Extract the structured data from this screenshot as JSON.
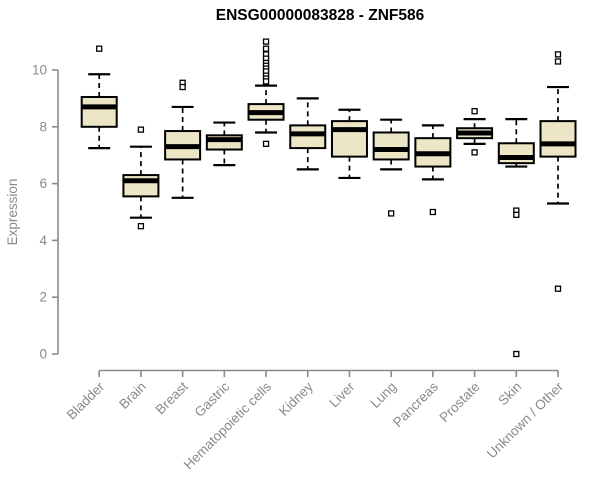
{
  "chart_data": {
    "type": "boxplot",
    "title": "ENSG00000083828 - ZNF586",
    "xlabel": "",
    "ylabel": "Expression",
    "ylim": [
      0,
      10
    ],
    "yticks": [
      0,
      2,
      4,
      6,
      8,
      10
    ],
    "grid": false,
    "legend": false,
    "categories": [
      "Bladder",
      "Brain",
      "Breast",
      "Gastric",
      "Hematopoietic cells",
      "Kidney",
      "Liver",
      "Lung",
      "Pancreas",
      "Prostate",
      "Skin",
      "Unknown / Other"
    ],
    "boxes": [
      {
        "category": "Bladder",
        "low": 7.25,
        "q1": 8.0,
        "median": 8.7,
        "q3": 9.05,
        "high": 9.85,
        "outliers": [
          10.75
        ]
      },
      {
        "category": "Brain",
        "low": 4.8,
        "q1": 5.55,
        "median": 6.1,
        "q3": 6.3,
        "high": 7.3,
        "outliers": [
          7.9,
          4.5
        ]
      },
      {
        "category": "Breast",
        "low": 5.5,
        "q1": 6.85,
        "median": 7.3,
        "q3": 7.85,
        "high": 8.7,
        "outliers": [
          9.55,
          9.4
        ]
      },
      {
        "category": "Gastric",
        "low": 6.65,
        "q1": 7.2,
        "median": 7.55,
        "q3": 7.7,
        "high": 8.15,
        "outliers": []
      },
      {
        "category": "Hematopoietic cells",
        "low": 7.8,
        "q1": 8.25,
        "median": 8.5,
        "q3": 8.8,
        "high": 9.45,
        "outliers": [
          11.0,
          10.75,
          10.55,
          10.4,
          10.25,
          10.15,
          10.05,
          9.95,
          9.8,
          9.7,
          9.6,
          7.4
        ]
      },
      {
        "category": "Kidney",
        "low": 6.5,
        "q1": 7.25,
        "median": 7.75,
        "q3": 8.05,
        "high": 9.0,
        "outliers": []
      },
      {
        "category": "Liver",
        "low": 6.2,
        "q1": 6.95,
        "median": 7.9,
        "q3": 8.2,
        "high": 8.6,
        "outliers": []
      },
      {
        "category": "Lung",
        "low": 6.5,
        "q1": 6.85,
        "median": 7.2,
        "q3": 7.8,
        "high": 8.25,
        "outliers": [
          4.95
        ]
      },
      {
        "category": "Pancreas",
        "low": 6.15,
        "q1": 6.6,
        "median": 7.05,
        "q3": 7.6,
        "high": 8.05,
        "outliers": [
          5.0
        ]
      },
      {
        "category": "Prostate",
        "low": 7.4,
        "q1": 7.6,
        "median": 7.78,
        "q3": 7.95,
        "high": 8.27,
        "outliers": [
          8.55,
          7.1
        ]
      },
      {
        "category": "Skin",
        "low": 6.6,
        "q1": 6.72,
        "median": 6.92,
        "q3": 7.42,
        "high": 8.27,
        "outliers": [
          5.05,
          4.9,
          0.0
        ]
      },
      {
        "category": "Unknown / Other",
        "low": 5.3,
        "q1": 6.95,
        "median": 7.4,
        "q3": 8.2,
        "high": 9.4,
        "outliers": [
          10.55,
          10.3,
          2.3
        ]
      }
    ],
    "colors": {
      "box_fill": "#ede6c6",
      "box_border": "#000000",
      "median": "#000000",
      "whisker": "#000000",
      "outlier_stroke": "#000000",
      "outlier_fill": "#ffffff",
      "axis": "#8a8a8a",
      "tick_text": "#8a8a8a",
      "title": "#000000",
      "background": "#ffffff"
    }
  }
}
